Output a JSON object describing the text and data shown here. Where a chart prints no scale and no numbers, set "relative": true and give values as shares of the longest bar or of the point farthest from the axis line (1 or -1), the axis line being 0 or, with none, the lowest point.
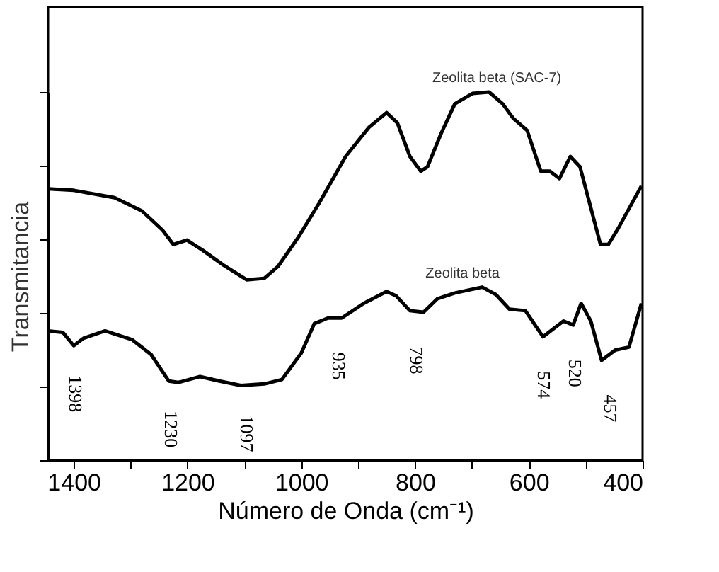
{
  "chart_data": {
    "type": "line",
    "relative": true,
    "xlabel": "Número de Onda (cm⁻¹)",
    "ylabel": "Transmitancia",
    "xlim": [
      1445,
      400
    ],
    "xticks": [
      1400,
      {
        "value": 1300,
        "label": null
      },
      1200,
      {
        "value": 1100,
        "label": null
      },
      1000,
      {
        "value": 900,
        "label": null
      },
      800,
      {
        "value": 700,
        "label": null
      },
      600,
      {
        "value": 500,
        "label": null
      },
      400
    ],
    "grid": false,
    "marker": "none",
    "line_style": "solid",
    "series": [
      {
        "name": "Zeolita beta (SAC-7)",
        "color": "#000000",
        "x": [
          1445,
          1400,
          1328,
          1280,
          1244,
          1225,
          1201,
          1173,
          1137,
          1096,
          1065,
          1041,
          1005,
          969,
          922,
          881,
          850,
          831,
          809,
          790,
          778,
          754,
          730,
          699,
          670,
          646,
          627,
          603,
          579,
          563,
          546,
          527,
          510,
          474,
          460,
          443,
          402
        ],
        "values": [
          0.737,
          0.733,
          0.713,
          0.677,
          0.625,
          0.586,
          0.598,
          0.57,
          0.53,
          0.49,
          0.494,
          0.526,
          0.606,
          0.697,
          0.825,
          0.904,
          0.944,
          0.916,
          0.825,
          0.785,
          0.797,
          0.888,
          0.968,
          0.996,
          1.0,
          0.968,
          0.928,
          0.896,
          0.785,
          0.785,
          0.765,
          0.825,
          0.797,
          0.586,
          0.586,
          0.629,
          0.745
        ]
      },
      {
        "name": "Zeolita beta",
        "color": "#000000",
        "x": [
          1445,
          1419,
          1400,
          1383,
          1345,
          1297,
          1264,
          1233,
          1216,
          1178,
          1144,
          1106,
          1065,
          1034,
          1000,
          977,
          953,
          929,
          890,
          850,
          833,
          809,
          785,
          761,
          730,
          682,
          658,
          634,
          606,
          575,
          539,
          522,
          508,
          491,
          472,
          448,
          424,
          402
        ],
        "values": [
          0.351,
          0.347,
          0.311,
          0.331,
          0.351,
          0.327,
          0.287,
          0.215,
          0.211,
          0.227,
          0.215,
          0.203,
          0.207,
          0.219,
          0.291,
          0.371,
          0.386,
          0.386,
          0.426,
          0.458,
          0.446,
          0.406,
          0.402,
          0.438,
          0.454,
          0.47,
          0.45,
          0.41,
          0.406,
          0.335,
          0.378,
          0.367,
          0.426,
          0.378,
          0.271,
          0.299,
          0.307,
          0.426
        ]
      }
    ],
    "annotations": [
      {
        "text": "1398",
        "x": 1398,
        "y": 0.311
      },
      {
        "text": "1230",
        "x": 1230,
        "y": 0.215
      },
      {
        "text": "1097",
        "x": 1097,
        "y": 0.203
      },
      {
        "text": "935",
        "x": 935,
        "y": 0.386
      },
      {
        "text": "798",
        "x": 798,
        "y": 0.402
      },
      {
        "text": "574",
        "x": 574,
        "y": 0.335
      },
      {
        "text": "520",
        "x": 520,
        "y": 0.367
      },
      {
        "text": "457",
        "x": 457,
        "y": 0.271
      }
    ]
  }
}
